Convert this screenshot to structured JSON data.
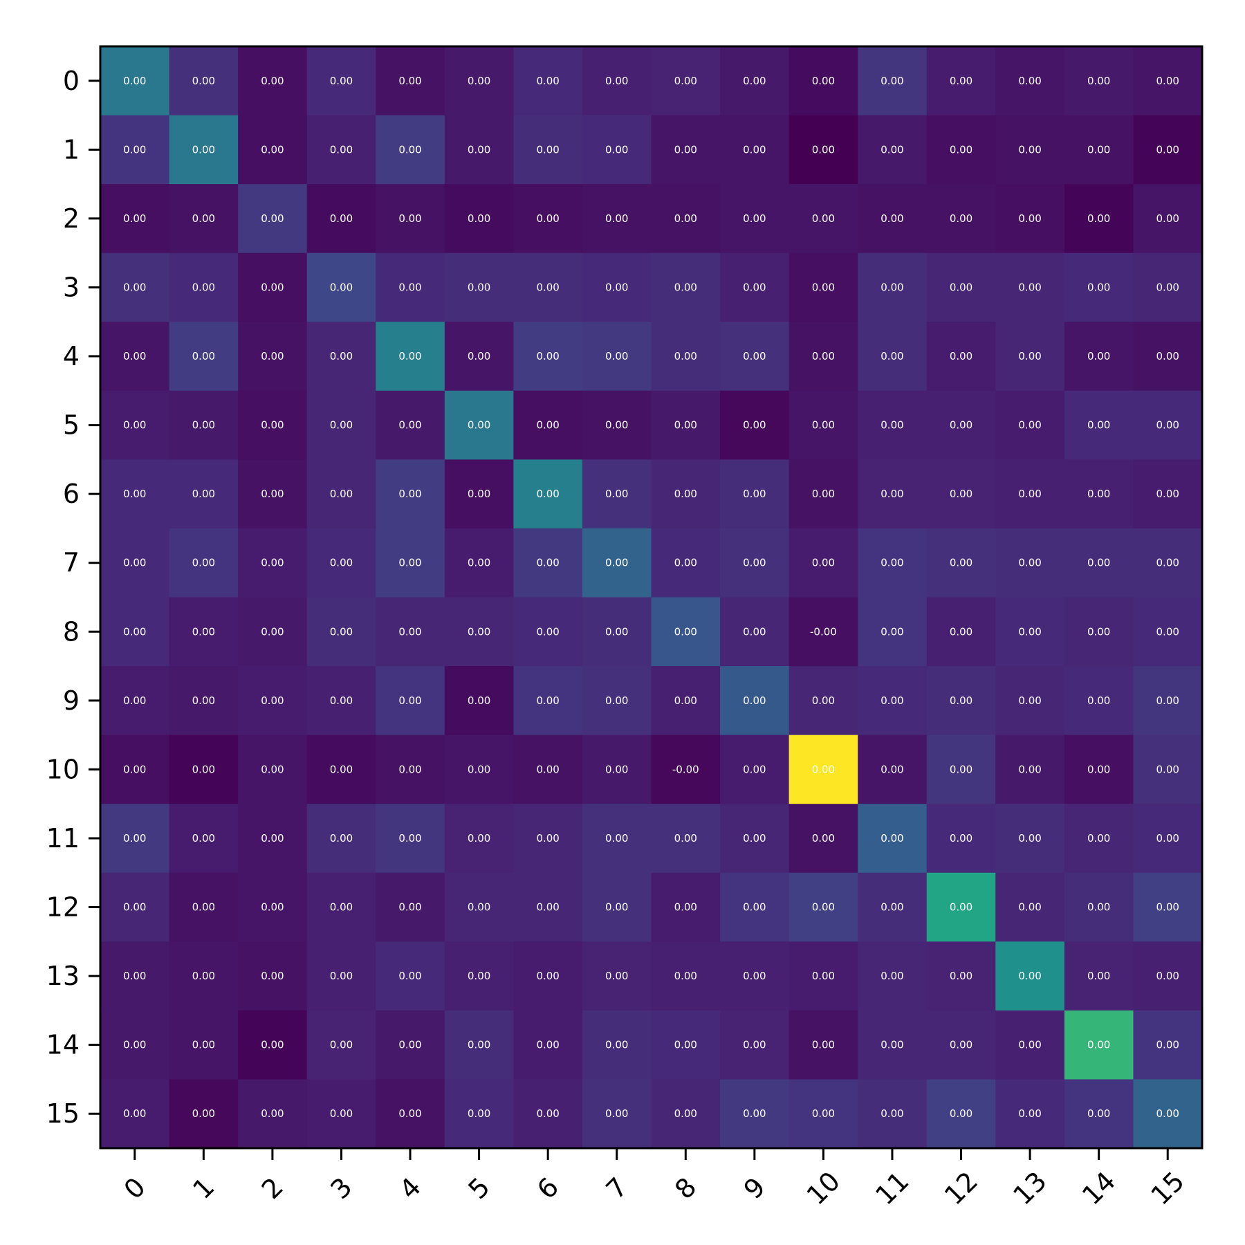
{
  "chart_data": {
    "type": "heatmap",
    "title": "",
    "xlabel": "",
    "ylabel": "",
    "x_categories": [
      "0",
      "1",
      "2",
      "3",
      "4",
      "5",
      "6",
      "7",
      "8",
      "9",
      "10",
      "11",
      "12",
      "13",
      "14",
      "15"
    ],
    "y_categories": [
      "0",
      "1",
      "2",
      "3",
      "4",
      "5",
      "6",
      "7",
      "8",
      "9",
      "10",
      "11",
      "12",
      "13",
      "14",
      "15"
    ],
    "colormap": "viridis",
    "grid": false,
    "legend": "none",
    "intensity": [
      [
        0.4,
        0.14,
        0.04,
        0.12,
        0.05,
        0.07,
        0.12,
        0.09,
        0.1,
        0.07,
        0.03,
        0.16,
        0.08,
        0.06,
        0.07,
        0.06
      ],
      [
        0.15,
        0.4,
        0.04,
        0.09,
        0.18,
        0.07,
        0.13,
        0.12,
        0.06,
        0.06,
        0.0,
        0.07,
        0.04,
        0.05,
        0.05,
        0.01
      ],
      [
        0.04,
        0.05,
        0.17,
        0.03,
        0.05,
        0.03,
        0.04,
        0.05,
        0.05,
        0.06,
        0.06,
        0.05,
        0.05,
        0.04,
        0.01,
        0.06
      ],
      [
        0.14,
        0.12,
        0.04,
        0.22,
        0.12,
        0.13,
        0.13,
        0.12,
        0.13,
        0.09,
        0.04,
        0.13,
        0.11,
        0.11,
        0.12,
        0.11
      ],
      [
        0.06,
        0.18,
        0.05,
        0.11,
        0.43,
        0.06,
        0.18,
        0.17,
        0.13,
        0.14,
        0.05,
        0.13,
        0.08,
        0.11,
        0.06,
        0.05
      ],
      [
        0.08,
        0.07,
        0.04,
        0.11,
        0.07,
        0.4,
        0.04,
        0.05,
        0.07,
        0.02,
        0.06,
        0.09,
        0.09,
        0.08,
        0.12,
        0.12
      ],
      [
        0.12,
        0.12,
        0.05,
        0.11,
        0.18,
        0.04,
        0.43,
        0.14,
        0.11,
        0.13,
        0.05,
        0.1,
        0.1,
        0.09,
        0.09,
        0.08
      ],
      [
        0.12,
        0.15,
        0.08,
        0.12,
        0.18,
        0.08,
        0.17,
        0.32,
        0.12,
        0.14,
        0.08,
        0.15,
        0.14,
        0.13,
        0.13,
        0.13
      ],
      [
        0.12,
        0.08,
        0.07,
        0.13,
        0.11,
        0.11,
        0.12,
        0.13,
        0.27,
        0.11,
        0.04,
        0.15,
        0.09,
        0.12,
        0.11,
        0.12
      ],
      [
        0.08,
        0.07,
        0.08,
        0.09,
        0.15,
        0.03,
        0.15,
        0.14,
        0.09,
        0.28,
        0.11,
        0.12,
        0.13,
        0.11,
        0.12,
        0.16
      ],
      [
        0.04,
        0.01,
        0.06,
        0.03,
        0.05,
        0.06,
        0.05,
        0.07,
        0.02,
        0.08,
        1.0,
        0.06,
        0.16,
        0.07,
        0.04,
        0.14
      ],
      [
        0.17,
        0.08,
        0.06,
        0.13,
        0.16,
        0.1,
        0.11,
        0.14,
        0.14,
        0.11,
        0.05,
        0.3,
        0.12,
        0.13,
        0.11,
        0.12
      ],
      [
        0.11,
        0.05,
        0.06,
        0.09,
        0.07,
        0.11,
        0.11,
        0.14,
        0.08,
        0.15,
        0.19,
        0.13,
        0.59,
        0.11,
        0.13,
        0.19
      ],
      [
        0.07,
        0.06,
        0.05,
        0.09,
        0.12,
        0.09,
        0.08,
        0.1,
        0.09,
        0.09,
        0.08,
        0.11,
        0.1,
        0.5,
        0.1,
        0.09
      ],
      [
        0.07,
        0.06,
        0.01,
        0.1,
        0.07,
        0.13,
        0.08,
        0.13,
        0.12,
        0.1,
        0.05,
        0.11,
        0.11,
        0.09,
        0.66,
        0.15
      ],
      [
        0.08,
        0.02,
        0.07,
        0.08,
        0.05,
        0.12,
        0.09,
        0.14,
        0.11,
        0.17,
        0.15,
        0.13,
        0.19,
        0.12,
        0.15,
        0.32
      ]
    ],
    "cell_labels": [
      [
        "0.00",
        "0.00",
        "0.00",
        "0.00",
        "0.00",
        "0.00",
        "0.00",
        "0.00",
        "0.00",
        "0.00",
        "0.00",
        "0.00",
        "0.00",
        "0.00",
        "0.00",
        "0.00"
      ],
      [
        "0.00",
        "0.00",
        "0.00",
        "0.00",
        "0.00",
        "0.00",
        "0.00",
        "0.00",
        "0.00",
        "0.00",
        "0.00",
        "0.00",
        "0.00",
        "0.00",
        "0.00",
        "0.00"
      ],
      [
        "0.00",
        "0.00",
        "0.00",
        "0.00",
        "0.00",
        "0.00",
        "0.00",
        "0.00",
        "0.00",
        "0.00",
        "0.00",
        "0.00",
        "0.00",
        "0.00",
        "0.00",
        "0.00"
      ],
      [
        "0.00",
        "0.00",
        "0.00",
        "0.00",
        "0.00",
        "0.00",
        "0.00",
        "0.00",
        "0.00",
        "0.00",
        "0.00",
        "0.00",
        "0.00",
        "0.00",
        "0.00",
        "0.00"
      ],
      [
        "0.00",
        "0.00",
        "0.00",
        "0.00",
        "0.00",
        "0.00",
        "0.00",
        "0.00",
        "0.00",
        "0.00",
        "0.00",
        "0.00",
        "0.00",
        "0.00",
        "0.00",
        "0.00"
      ],
      [
        "0.00",
        "0.00",
        "0.00",
        "0.00",
        "0.00",
        "0.00",
        "0.00",
        "0.00",
        "0.00",
        "0.00",
        "0.00",
        "0.00",
        "0.00",
        "0.00",
        "0.00",
        "0.00"
      ],
      [
        "0.00",
        "0.00",
        "0.00",
        "0.00",
        "0.00",
        "0.00",
        "0.00",
        "0.00",
        "0.00",
        "0.00",
        "0.00",
        "0.00",
        "0.00",
        "0.00",
        "0.00",
        "0.00"
      ],
      [
        "0.00",
        "0.00",
        "0.00",
        "0.00",
        "0.00",
        "0.00",
        "0.00",
        "0.00",
        "0.00",
        "0.00",
        "0.00",
        "0.00",
        "0.00",
        "0.00",
        "0.00",
        "0.00"
      ],
      [
        "0.00",
        "0.00",
        "0.00",
        "0.00",
        "0.00",
        "0.00",
        "0.00",
        "0.00",
        "0.00",
        "0.00",
        "-0.00",
        "0.00",
        "0.00",
        "0.00",
        "0.00",
        "0.00"
      ],
      [
        "0.00",
        "0.00",
        "0.00",
        "0.00",
        "0.00",
        "0.00",
        "0.00",
        "0.00",
        "0.00",
        "0.00",
        "0.00",
        "0.00",
        "0.00",
        "0.00",
        "0.00",
        "0.00"
      ],
      [
        "0.00",
        "0.00",
        "0.00",
        "0.00",
        "0.00",
        "0.00",
        "0.00",
        "0.00",
        "-0.00",
        "0.00",
        "0.00",
        "0.00",
        "0.00",
        "0.00",
        "0.00",
        "0.00"
      ],
      [
        "0.00",
        "0.00",
        "0.00",
        "0.00",
        "0.00",
        "0.00",
        "0.00",
        "0.00",
        "0.00",
        "0.00",
        "0.00",
        "0.00",
        "0.00",
        "0.00",
        "0.00",
        "0.00"
      ],
      [
        "0.00",
        "0.00",
        "0.00",
        "0.00",
        "0.00",
        "0.00",
        "0.00",
        "0.00",
        "0.00",
        "0.00",
        "0.00",
        "0.00",
        "0.00",
        "0.00",
        "0.00",
        "0.00"
      ],
      [
        "0.00",
        "0.00",
        "0.00",
        "0.00",
        "0.00",
        "0.00",
        "0.00",
        "0.00",
        "0.00",
        "0.00",
        "0.00",
        "0.00",
        "0.00",
        "0.00",
        "0.00",
        "0.00"
      ],
      [
        "0.00",
        "0.00",
        "0.00",
        "0.00",
        "0.00",
        "0.00",
        "0.00",
        "0.00",
        "0.00",
        "0.00",
        "0.00",
        "0.00",
        "0.00",
        "0.00",
        "0.00",
        "0.00"
      ],
      [
        "0.00",
        "0.00",
        "0.00",
        "0.00",
        "0.00",
        "0.00",
        "0.00",
        "0.00",
        "0.00",
        "0.00",
        "0.00",
        "0.00",
        "0.00",
        "0.00",
        "0.00",
        "0.00"
      ]
    ]
  }
}
